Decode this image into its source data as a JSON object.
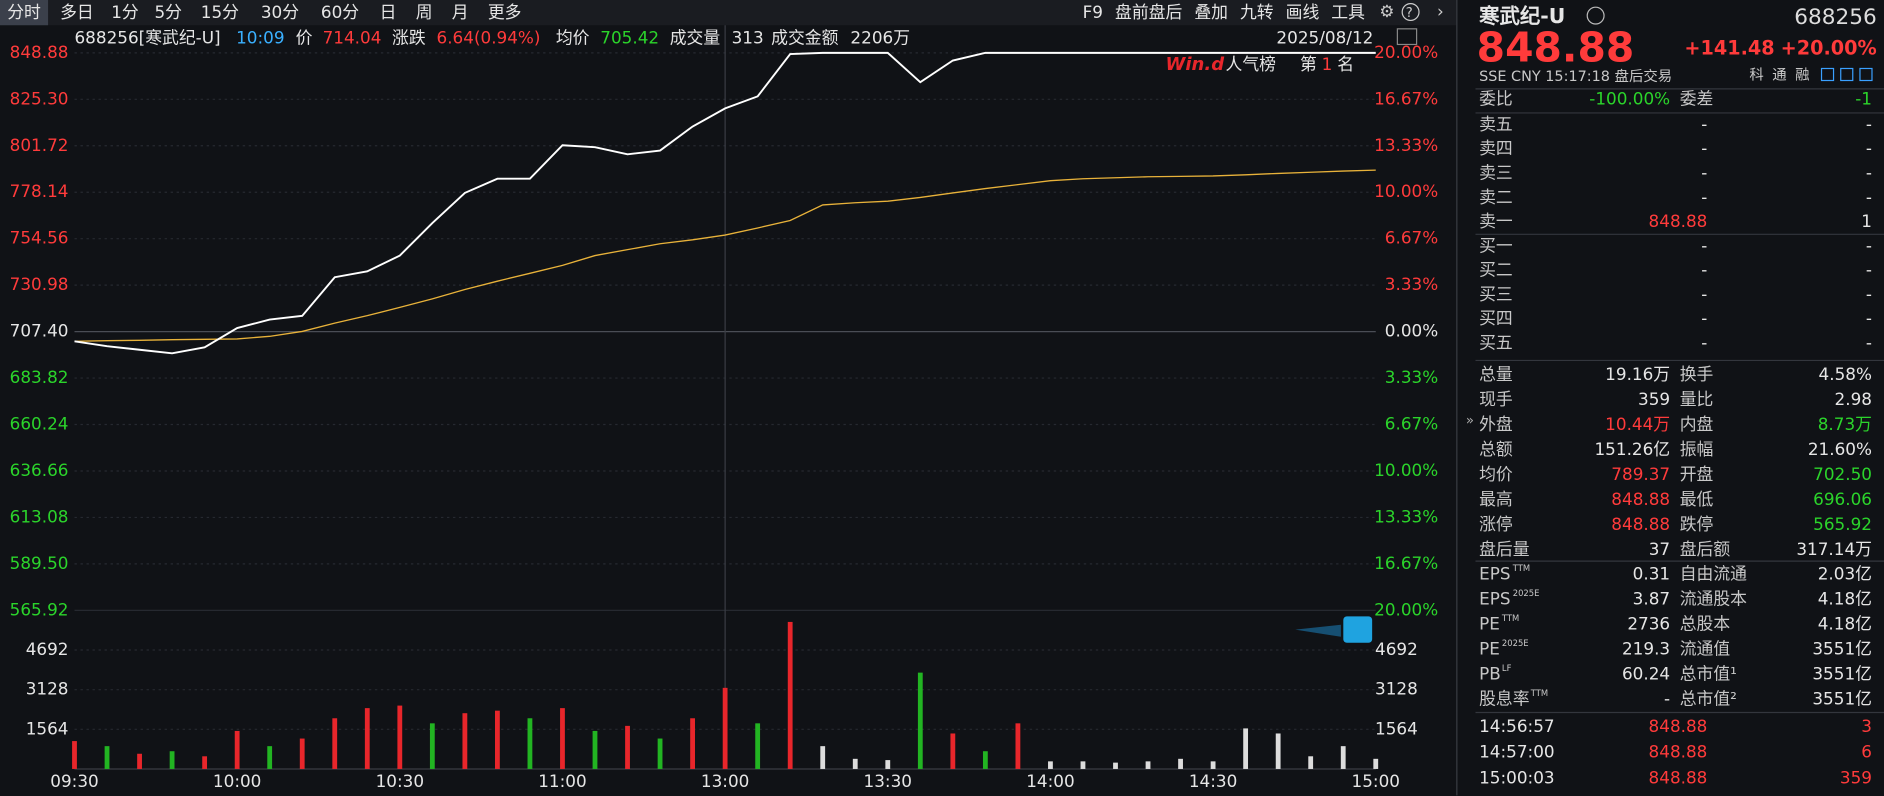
{
  "toolbar": {
    "tabs": [
      "分时",
      "多日",
      "1分",
      "5分",
      "15分",
      "30分",
      "60分",
      "日",
      "周",
      "月",
      "更多"
    ],
    "tools": [
      "F9",
      "盘前盘后",
      "叠加",
      "九转",
      "画线",
      "工具"
    ]
  },
  "info_bar": {
    "code_name": "688256[寒武纪-U]",
    "time": "10:09",
    "price_label": "价",
    "price": "714.04",
    "change_label": "涨跌",
    "change": "6.64(0.94%)",
    "avg_label": "均价",
    "avg": "705.42",
    "vol_label": "成交量",
    "vol": "313",
    "amount_label": "成交金额",
    "amount": "2206万",
    "date": "2025/08/12"
  },
  "badge": {
    "brand": "Win.d",
    "board": "人气榜",
    "rank_prefix": "第",
    "rank": "1",
    "rank_suffix": "名"
  },
  "chart": {
    "type": "line",
    "yticks": [
      {
        "value": 848.88,
        "label": "848.88",
        "pct": "20.00%"
      },
      {
        "value": 825.3,
        "label": "825.30",
        "pct": "16.67%"
      },
      {
        "value": 801.72,
        "label": "801.72",
        "pct": "13.33%"
      },
      {
        "value": 778.14,
        "label": "778.14",
        "pct": "10.00%"
      },
      {
        "value": 754.56,
        "label": "754.56",
        "pct": "6.67%"
      },
      {
        "value": 730.98,
        "label": "730.98",
        "pct": "3.33%"
      },
      {
        "value": 707.4,
        "label": "707.40",
        "pct": "0.00%"
      },
      {
        "value": 683.82,
        "label": "683.82",
        "pct": "3.33%"
      },
      {
        "value": 660.24,
        "label": "660.24",
        "pct": "6.67%"
      },
      {
        "value": 636.66,
        "label": "636.66",
        "pct": "10.00%"
      },
      {
        "value": 613.08,
        "label": "613.08",
        "pct": "13.33%"
      },
      {
        "value": 589.5,
        "label": "589.50",
        "pct": "16.67%"
      },
      {
        "value": 565.92,
        "label": "565.92",
        "pct": "20.00%"
      }
    ],
    "ylim": [
      565.92,
      848.88
    ],
    "x_labels": [
      "09:30",
      "10:00",
      "10:30",
      "11:00",
      "13:00",
      "13:30",
      "14:00",
      "14:30",
      "15:00"
    ],
    "price": {
      "color": "#ffffff",
      "values": [
        702.5,
        700,
        698.2,
        696.4,
        699.4,
        709.2,
        713.5,
        715.4,
        735,
        738,
        746,
        762.5,
        777.8,
        785,
        785,
        802,
        801,
        797.4,
        799.3,
        811.5,
        820.7,
        826.8,
        848.3,
        848.88,
        848.88,
        848.88,
        834,
        845,
        848.88,
        848.88,
        848.88,
        848.88,
        848.88,
        848.88,
        848.88,
        848.88,
        848.88,
        848.88,
        848.88,
        848.88,
        848.88
      ]
    },
    "average": {
      "color": "#e8b23a",
      "values": [
        702.5,
        702.8,
        703,
        703.3,
        703.5,
        703.7,
        705,
        707.5,
        711.7,
        715.5,
        719.7,
        724,
        728.8,
        733,
        737,
        741,
        746,
        749,
        752,
        754,
        756.4,
        760,
        763.8,
        771.7,
        772.8,
        773.6,
        775.5,
        777.8,
        780,
        782,
        784,
        785,
        785.5,
        786,
        786.2,
        786.4,
        787,
        787.7,
        788.3,
        788.9,
        789.37
      ]
    },
    "volume": {
      "ylim": [
        0,
        6256
      ],
      "yticks": [
        4692,
        3128,
        1564
      ],
      "values": [
        1100,
        900,
        600,
        700,
        500,
        1500,
        900,
        1200,
        2000,
        2400,
        2500,
        1800,
        2200,
        2300,
        2000,
        2400,
        1500,
        1700,
        1200,
        2000,
        3200,
        1800,
        5800,
        900,
        400,
        350,
        3800,
        1400,
        700,
        1800,
        300,
        300,
        250,
        300,
        400,
        300,
        1600,
        1400,
        500,
        900,
        400
      ],
      "colors": [
        "#e8262b",
        "#22b422",
        "#e8262b",
        "#22b422",
        "#e8262b",
        "#e8262b",
        "#22b422",
        "#e8262b",
        "#e8262b",
        "#e8262b",
        "#e8262b",
        "#22b422",
        "#e8262b",
        "#e8262b",
        "#22b422",
        "#e8262b",
        "#22b422",
        "#e8262b",
        "#22b422",
        "#e8262b",
        "#e8262b",
        "#22b422",
        "#e8262b",
        "#dddddd",
        "#dddddd",
        "#dddddd",
        "#22b422",
        "#e8262b",
        "#22b422",
        "#e8262b",
        "#dddddd",
        "#dddddd",
        "#dddddd",
        "#dddddd",
        "#dddddd",
        "#dddddd",
        "#dddddd",
        "#dddddd",
        "#dddddd",
        "#dddddd",
        "#dddddd"
      ]
    }
  },
  "quote": {
    "name": "寒武纪-U",
    "code": "688256",
    "price": "848.88",
    "change": "+141.48",
    "pct": "+20.00%",
    "sub": "SSE  CNY  15:17:18  盘后交易",
    "flags": [
      "科",
      "通",
      "融"
    ],
    "ratio_label": "委比",
    "ratio": "-100.00%",
    "diff_label": "委差",
    "diff": "-1",
    "sell": [
      [
        "卖五",
        "-",
        "-"
      ],
      [
        "卖四",
        "-",
        "-"
      ],
      [
        "卖三",
        "-",
        "-"
      ],
      [
        "卖二",
        "-",
        "-"
      ],
      [
        "卖一",
        "848.88",
        "1"
      ]
    ],
    "buy": [
      [
        "买一",
        "-",
        "-"
      ],
      [
        "买二",
        "-",
        "-"
      ],
      [
        "买三",
        "-",
        "-"
      ],
      [
        "买四",
        "-",
        "-"
      ],
      [
        "买五",
        "-",
        "-"
      ]
    ],
    "stats": [
      {
        "l1": "总量",
        "v1": "19.16万",
        "c1": "#e6e6e6",
        "l2": "换手",
        "v2": "4.58%",
        "c2": "#e6e6e6"
      },
      {
        "l1": "现手",
        "v1": "359",
        "c1": "#e6e6e6",
        "l2": "量比",
        "v2": "2.98",
        "c2": "#e6e6e6"
      },
      {
        "l1": "外盘",
        "v1": "10.44万",
        "c1": "#ff3b3b",
        "l2": "内盘",
        "v2": "8.73万",
        "c2": "#2bd42b"
      },
      {
        "l1": "总额",
        "v1": "151.26亿",
        "c1": "#e6e6e6",
        "l2": "振幅",
        "v2": "21.60%",
        "c2": "#e6e6e6"
      },
      {
        "l1": "均价",
        "v1": "789.37",
        "c1": "#ff3b3b",
        "l2": "开盘",
        "v2": "702.50",
        "c2": "#2bd42b"
      },
      {
        "l1": "最高",
        "v1": "848.88",
        "c1": "#ff3b3b",
        "l2": "最低",
        "v2": "696.06",
        "c2": "#2bd42b"
      },
      {
        "l1": "涨停",
        "v1": "848.88",
        "c1": "#ff3b3b",
        "l2": "跌停",
        "v2": "565.92",
        "c2": "#2bd42b"
      },
      {
        "l1": "盘后量",
        "v1": "37",
        "c1": "#e6e6e6",
        "l2": "盘后额",
        "v2": "317.14万",
        "c2": "#e6e6e6"
      }
    ],
    "fundamentals": [
      {
        "l1": "EPS",
        "s1": "TTM",
        "v1": "0.31",
        "l2": "自由流通",
        "v2": "2.03亿"
      },
      {
        "l1": "EPS",
        "s1": "2025E",
        "v1": "3.87",
        "l2": "流通股本",
        "v2": "4.18亿"
      },
      {
        "l1": "PE",
        "s1": "TTM",
        "v1": "2736",
        "l2": "总股本",
        "v2": "4.18亿"
      },
      {
        "l1": "PE",
        "s1": "2025E",
        "v1": "219.3",
        "l2": "流通值",
        "v2": "3551亿"
      },
      {
        "l1": "PB",
        "s1": "LF",
        "v1": "60.24",
        "l2": "总市值¹",
        "v2": "3551亿"
      },
      {
        "l1": "股息率",
        "s1": "TTM",
        "v1": "-",
        "l2": "总市值²",
        "v2": "3551亿"
      }
    ],
    "trades": [
      [
        "14:56:57",
        "848.88",
        "3"
      ],
      [
        "14:57:00",
        "848.88",
        "6"
      ],
      [
        "15:00:03",
        "848.88",
        "359"
      ]
    ]
  }
}
